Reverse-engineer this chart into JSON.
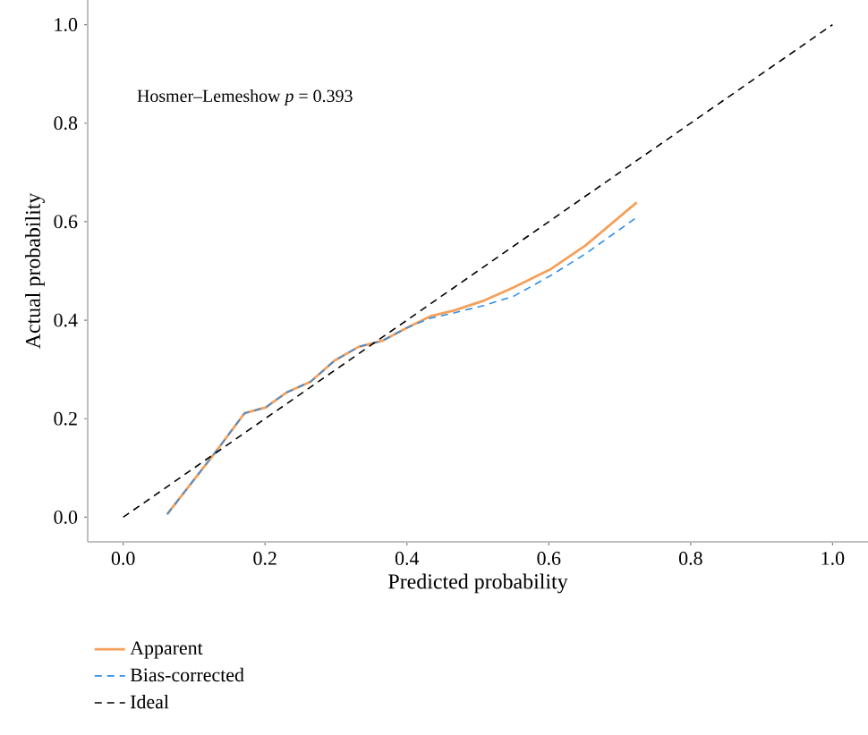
{
  "chart_data": {
    "type": "line",
    "xlabel": "Predicted probability",
    "ylabel": "Actual probability",
    "annotations": [
      "Hosmer–Lemeshow *p* = 0.393"
    ],
    "xlim": [
      -0.05,
      1.05
    ],
    "ylim": [
      -0.05,
      1.05
    ],
    "xticks": [
      {
        "value": 0,
        "label": "0.0"
      },
      0.2,
      0.4,
      0.6,
      0.8,
      {
        "value": 1,
        "label": "1.0"
      }
    ],
    "yticks": [
      {
        "value": 0,
        "label": "0.0"
      },
      0.2,
      0.4,
      0.6,
      0.8,
      {
        "value": 1,
        "label": "1.0"
      }
    ],
    "grid": false,
    "legend": "bottom left",
    "marker": "none",
    "series": [
      {
        "name": "Apparent",
        "color": "#f5a05a",
        "line_style": "solid",
        "x": [
          0.062,
          0.129,
          0.171,
          0.201,
          0.23,
          0.264,
          0.298,
          0.332,
          0.365,
          0.399,
          0.433,
          0.467,
          0.509,
          0.551,
          0.602,
          0.652,
          0.724
        ],
        "values": [
          0.006,
          0.13,
          0.211,
          0.223,
          0.253,
          0.275,
          0.318,
          0.346,
          0.358,
          0.384,
          0.408,
          0.42,
          0.44,
          0.467,
          0.503,
          0.552,
          0.639
        ]
      },
      {
        "name": "Bias-corrected",
        "color": "#2f8fe8",
        "line_style": "dashed",
        "x": [
          0.062,
          0.129,
          0.171,
          0.201,
          0.23,
          0.264,
          0.298,
          0.332,
          0.365,
          0.399,
          0.433,
          0.467,
          0.509,
          0.551,
          0.602,
          0.652,
          0.724
        ],
        "values": [
          0.006,
          0.13,
          0.211,
          0.223,
          0.253,
          0.275,
          0.318,
          0.346,
          0.358,
          0.384,
          0.404,
          0.415,
          0.43,
          0.449,
          0.49,
          0.535,
          0.609
        ]
      },
      {
        "name": "Ideal",
        "color": "#000000",
        "line_style": "dashed",
        "x": [
          0.0,
          1.0
        ],
        "values": [
          0.0,
          1.0
        ]
      }
    ]
  }
}
